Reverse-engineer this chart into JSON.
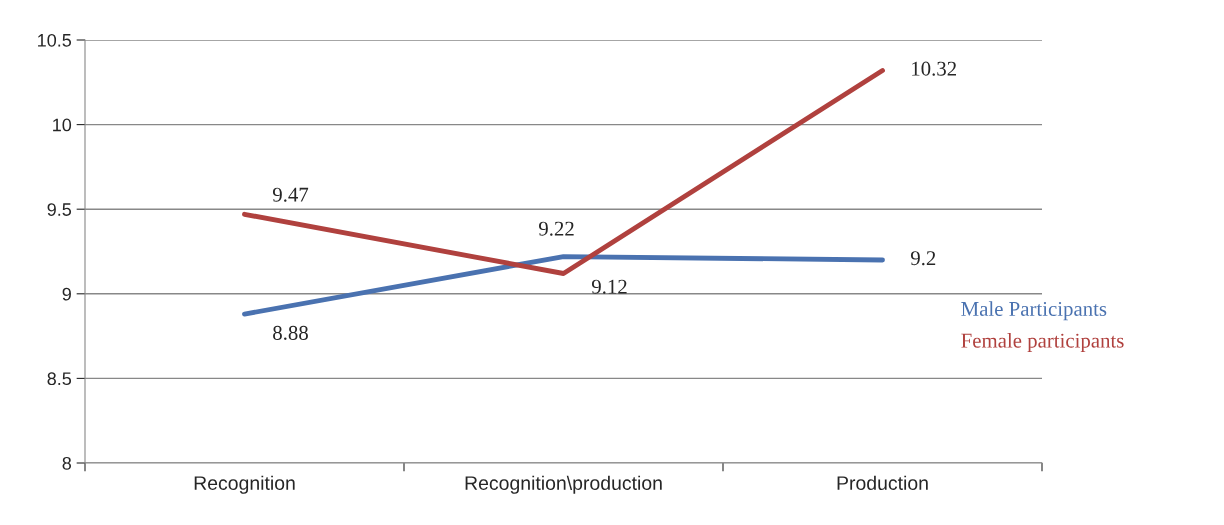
{
  "chart_data": {
    "type": "line",
    "categories": [
      "Recognition",
      "Recognition\\production",
      "Production"
    ],
    "series": [
      {
        "name": "Male Participants",
        "color": "#4a72b0",
        "values": [
          8.88,
          9.22,
          9.2
        ]
      },
      {
        "name": "Female participants",
        "color": "#b0413e",
        "values": [
          9.47,
          9.12,
          10.32
        ]
      }
    ],
    "ylim": [
      8,
      10.5
    ],
    "yticks": [
      8,
      8.5,
      9,
      9.5,
      10,
      10.5
    ],
    "grid": "y",
    "data_labels": true,
    "legend": "right",
    "marker": "none",
    "line_style": "solid"
  }
}
